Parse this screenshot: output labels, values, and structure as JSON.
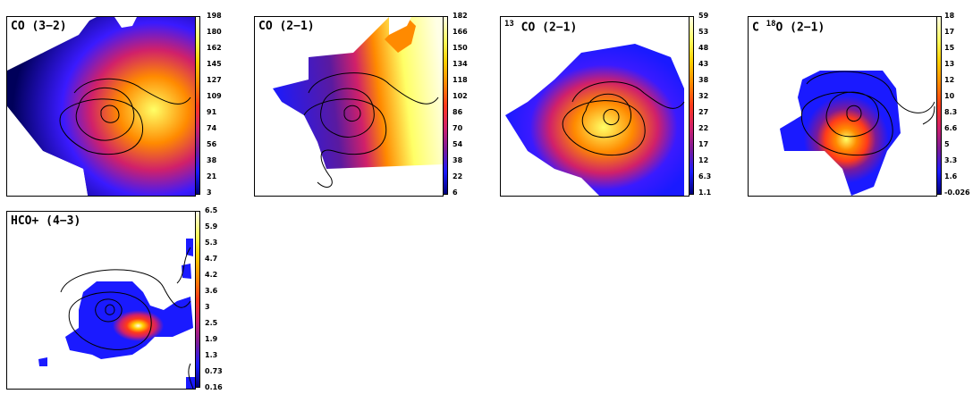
{
  "colormap": [
    "#00007a",
    "#1a1aff",
    "#7a1a9a",
    "#d0206a",
    "#ff3a1a",
    "#ff8a00",
    "#ffd000",
    "#ffff66",
    "#ffffe6"
  ],
  "contour_color": "#000000",
  "panels": [
    {
      "id": "co32",
      "title_prefix": "CO (3−2)",
      "title_sup": "",
      "title_rest": "",
      "ticks": [
        "198",
        "180",
        "162",
        "145",
        "127",
        "109",
        "91",
        "74",
        "56",
        "38",
        "21",
        "3"
      ]
    },
    {
      "id": "co21",
      "title_prefix": "CO (2−1)",
      "title_sup": "",
      "title_rest": "",
      "ticks": [
        "182",
        "166",
        "150",
        "134",
        "118",
        "102",
        "86",
        "70",
        "54",
        "38",
        "22",
        "6"
      ]
    },
    {
      "id": "13co21",
      "title_prefix": "",
      "title_sup": "13",
      "title_rest": " CO (2−1)",
      "ticks": [
        "59",
        "53",
        "48",
        "43",
        "38",
        "32",
        "27",
        "22",
        "17",
        "12",
        "6.3",
        "1.1"
      ]
    },
    {
      "id": "c18o21",
      "title_prefix": "C ",
      "title_sup": "18",
      "title_rest": "O (2−1)",
      "ticks": [
        "18",
        "17",
        "15",
        "13",
        "12",
        "10",
        "8.3",
        "6.6",
        "5",
        "3.3",
        "1.6",
        "-0.026"
      ]
    },
    {
      "id": "hco43",
      "title_prefix": "HCO+ (4−3)",
      "title_sup": "",
      "title_rest": "",
      "ticks": [
        "6.5",
        "5.9",
        "5.3",
        "4.7",
        "4.2",
        "3.6",
        "3",
        "2.5",
        "1.9",
        "1.3",
        "0.73",
        "0.16"
      ]
    }
  ]
}
